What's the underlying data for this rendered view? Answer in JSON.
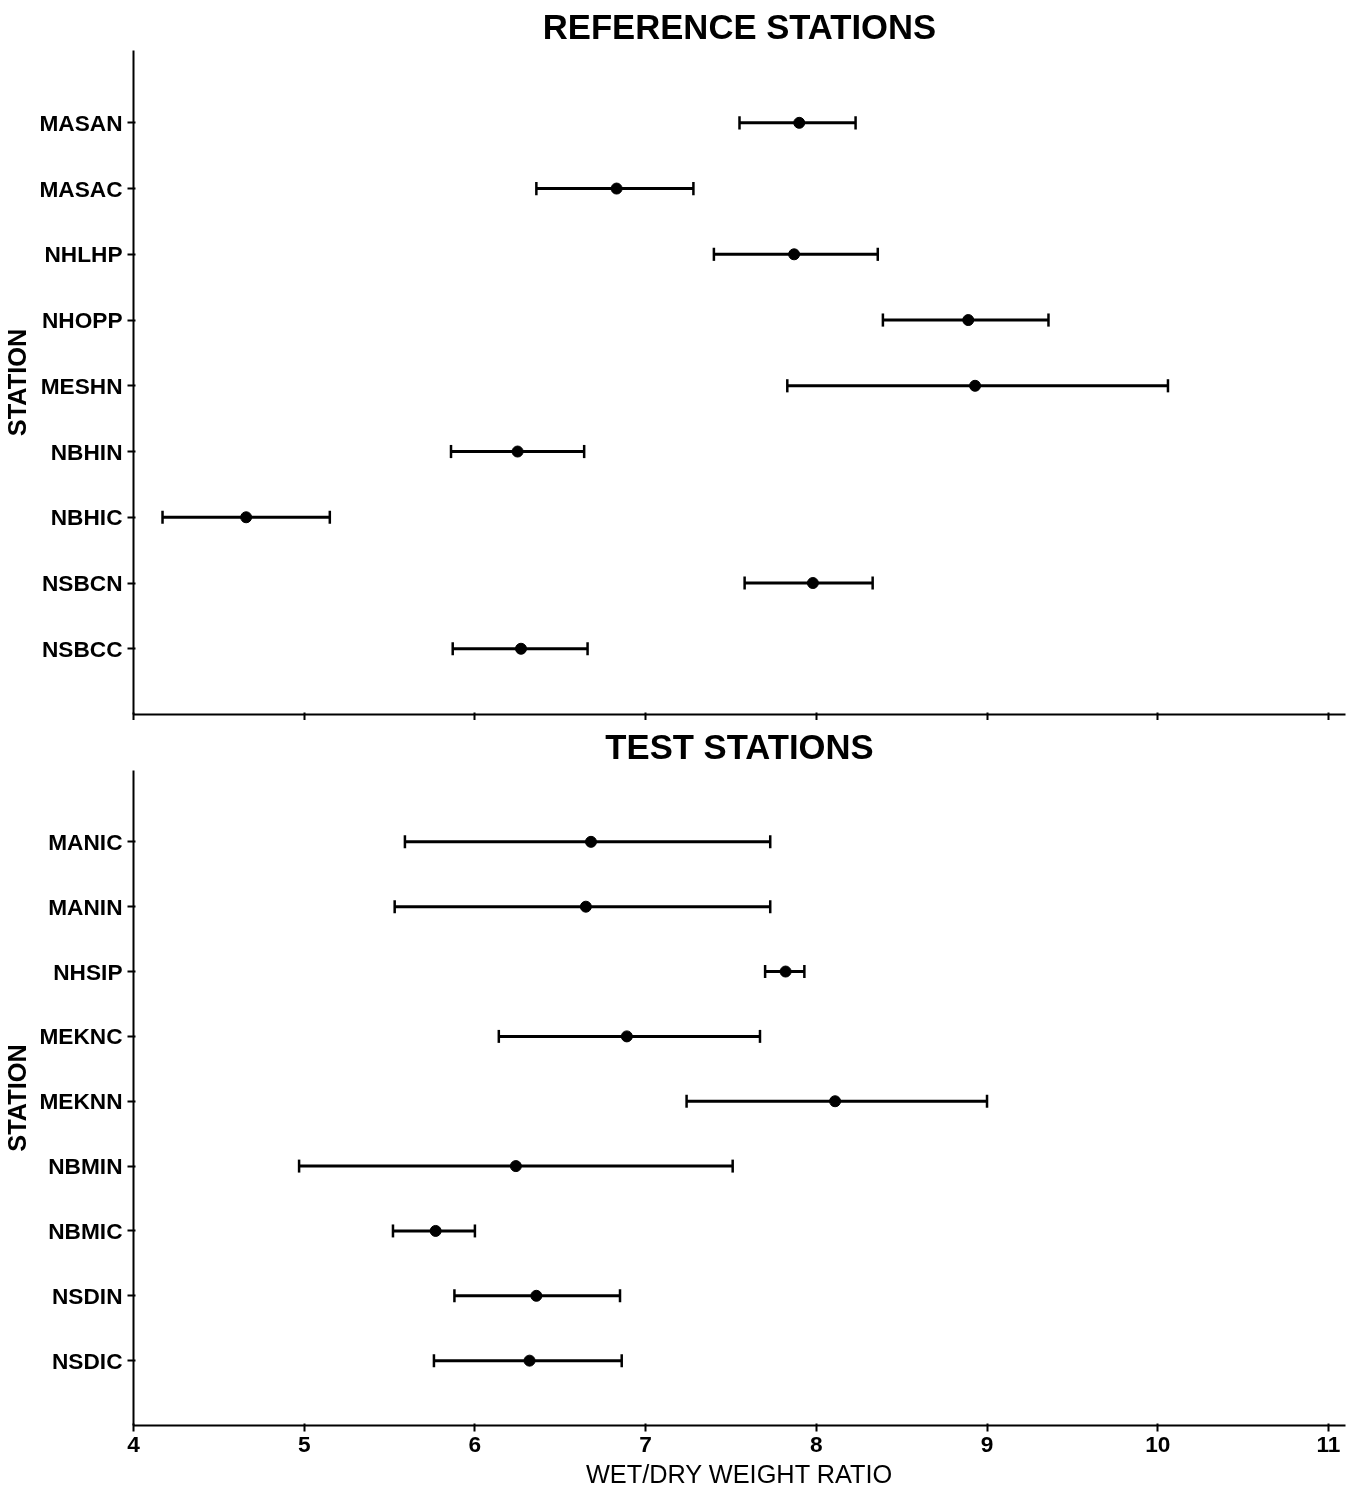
{
  "chart_data": [
    {
      "type": "scatter",
      "title": "REFERENCE STATIONS",
      "ylabel": "STATION",
      "orientation": "horizontal",
      "marker": "circle",
      "grid": false,
      "tick_labels": "y",
      "xlim": [
        4,
        11.1
      ],
      "xticks": [
        4,
        5,
        6,
        7,
        8,
        9,
        10,
        11
      ],
      "categories": [
        "MASAN",
        "MASAC",
        "NHLHP",
        "NHOPP",
        "MESHN",
        "NBHIN",
        "NBHIC",
        "NSBCN",
        "NSBCC"
      ],
      "color": "#000000",
      "values": [
        7.9,
        6.83,
        7.87,
        8.89,
        8.93,
        6.25,
        4.66,
        7.98,
        6.27
      ],
      "errors": [
        [
          7.55,
          8.23
        ],
        [
          6.36,
          7.28
        ],
        [
          7.4,
          8.36
        ],
        [
          8.39,
          9.36
        ],
        [
          7.83,
          10.06
        ],
        [
          5.86,
          6.64
        ],
        [
          4.17,
          5.15
        ],
        [
          7.58,
          8.33
        ],
        [
          5.87,
          6.66
        ]
      ]
    },
    {
      "type": "scatter",
      "title": "TEST STATIONS",
      "ylabel": "STATION",
      "xlabel": "WET/DRY WEIGHT RATIO",
      "orientation": "horizontal",
      "marker": "circle",
      "grid": false,
      "xlim": [
        4,
        11.1
      ],
      "xticks": [
        4,
        5,
        6,
        7,
        8,
        9,
        10,
        11
      ],
      "categories": [
        "MANIC",
        "MANIN",
        "NHSIP",
        "MEKNC",
        "MEKNN",
        "NBMIN",
        "NBMIC",
        "NSDIN",
        "NSDIC"
      ],
      "color": "#000000",
      "values": [
        6.68,
        6.65,
        7.82,
        6.89,
        8.11,
        6.24,
        5.77,
        6.36,
        6.32
      ],
      "errors": [
        [
          5.59,
          7.73
        ],
        [
          5.53,
          7.73
        ],
        [
          7.7,
          7.93
        ],
        [
          6.14,
          7.67
        ],
        [
          7.24,
          9.0
        ],
        [
          4.97,
          7.51
        ],
        [
          5.52,
          6.0
        ],
        [
          5.88,
          6.85
        ],
        [
          5.76,
          6.86
        ]
      ]
    }
  ]
}
